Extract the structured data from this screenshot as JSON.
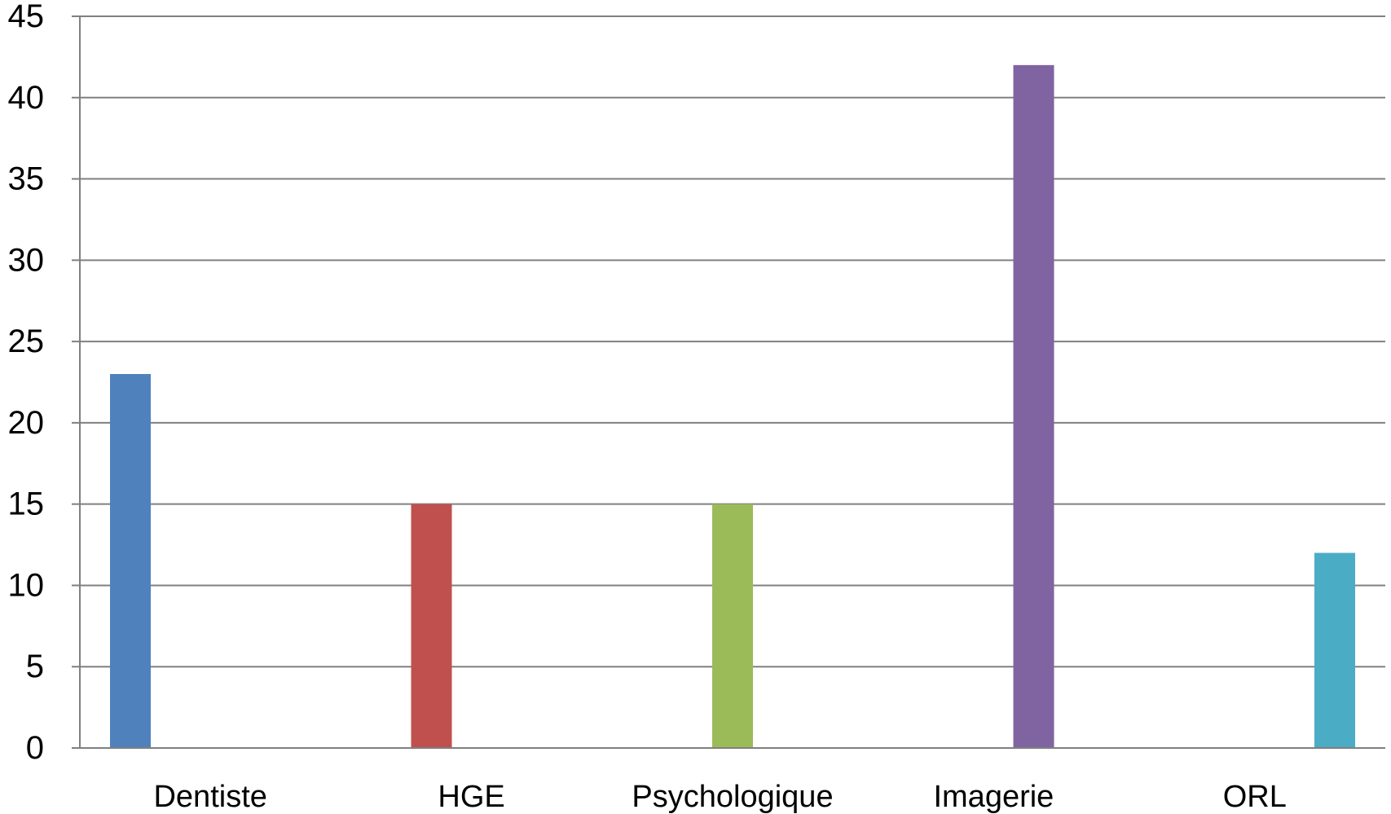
{
  "chart_data": {
    "type": "bar",
    "title": "",
    "xlabel": "",
    "ylabel": "",
    "categories": [
      "Dentiste",
      "HGE",
      "Psychologique",
      "Imagerie",
      "ORL"
    ],
    "values": [
      23,
      15,
      15,
      42,
      12
    ],
    "colors": [
      "#4f81bd",
      "#c0504d",
      "#9bbb59",
      "#8064a2",
      "#4bacc6"
    ],
    "ylim": [
      0,
      45
    ],
    "yticks": [
      0,
      5,
      10,
      15,
      20,
      25,
      30,
      35,
      40,
      45
    ],
    "grid": true,
    "legend": "none",
    "gridline_color": "#808080",
    "axis_color": "#808080"
  }
}
